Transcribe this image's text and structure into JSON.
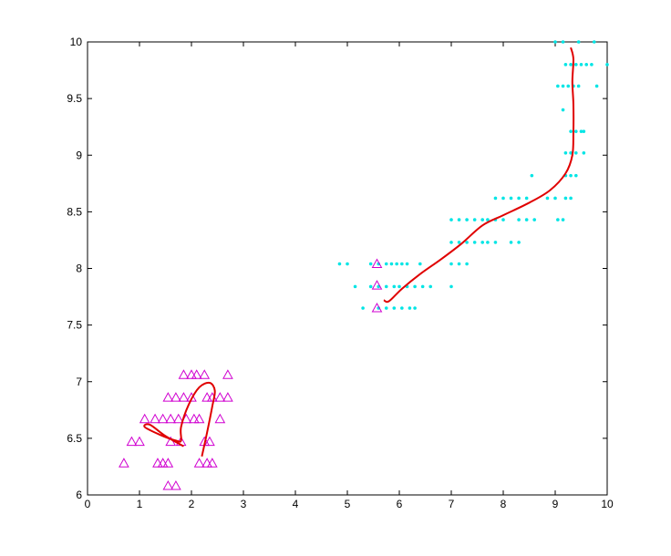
{
  "chart_data": {
    "type": "scatter",
    "title": "",
    "xlabel": "",
    "ylabel": "",
    "xlim": [
      0,
      10
    ],
    "ylim": [
      6,
      10
    ],
    "xticks": [
      "0",
      "1",
      "2",
      "3",
      "4",
      "5",
      "6",
      "7",
      "8",
      "9",
      "10"
    ],
    "yticks": [
      "6",
      "6.5",
      "7",
      "7.5",
      "8",
      "8.5",
      "9",
      "9.5",
      "10"
    ],
    "grid": false,
    "legend": "none",
    "colors": {
      "cyan": "#00e5e5",
      "magenta": "#d000d0",
      "red": "#e00000",
      "axis": "#000000"
    },
    "series": [
      {
        "marker": "dot",
        "color": "#00e5e5",
        "points": [
          [
            4.85,
            8.04
          ],
          [
            5.0,
            8.04
          ],
          [
            5.45,
            8.04
          ],
          [
            5.6,
            8.04
          ],
          [
            5.75,
            8.04
          ],
          [
            5.85,
            8.04
          ],
          [
            5.95,
            8.04
          ],
          [
            6.05,
            8.04
          ],
          [
            6.15,
            8.04
          ],
          [
            6.4,
            8.04
          ],
          [
            7.0,
            8.04
          ],
          [
            7.15,
            8.04
          ],
          [
            7.3,
            8.04
          ],
          [
            5.15,
            7.84
          ],
          [
            5.45,
            7.84
          ],
          [
            5.6,
            7.84
          ],
          [
            5.75,
            7.84
          ],
          [
            5.9,
            7.84
          ],
          [
            6.0,
            7.84
          ],
          [
            6.15,
            7.84
          ],
          [
            6.3,
            7.84
          ],
          [
            6.45,
            7.84
          ],
          [
            6.6,
            7.84
          ],
          [
            7.0,
            7.84
          ],
          [
            5.3,
            7.65
          ],
          [
            5.6,
            7.65
          ],
          [
            5.75,
            7.65
          ],
          [
            5.9,
            7.65
          ],
          [
            6.05,
            7.65
          ],
          [
            6.2,
            7.65
          ],
          [
            6.3,
            7.65
          ],
          [
            7.0,
            8.23
          ],
          [
            7.15,
            8.23
          ],
          [
            7.3,
            8.23
          ],
          [
            7.45,
            8.23
          ],
          [
            7.6,
            8.23
          ],
          [
            7.7,
            8.23
          ],
          [
            7.85,
            8.23
          ],
          [
            8.15,
            8.23
          ],
          [
            8.3,
            8.23
          ],
          [
            7.0,
            8.43
          ],
          [
            7.15,
            8.43
          ],
          [
            7.3,
            8.43
          ],
          [
            7.45,
            8.43
          ],
          [
            7.6,
            8.43
          ],
          [
            7.7,
            8.43
          ],
          [
            7.85,
            8.43
          ],
          [
            8.0,
            8.43
          ],
          [
            8.3,
            8.43
          ],
          [
            8.45,
            8.43
          ],
          [
            8.6,
            8.43
          ],
          [
            7.85,
            8.62
          ],
          [
            8.0,
            8.62
          ],
          [
            8.15,
            8.62
          ],
          [
            8.3,
            8.62
          ],
          [
            8.45,
            8.62
          ],
          [
            8.85,
            8.62
          ],
          [
            9.0,
            8.62
          ],
          [
            9.2,
            8.62
          ],
          [
            9.3,
            8.62
          ],
          [
            9.05,
            8.43
          ],
          [
            9.15,
            8.43
          ],
          [
            8.55,
            8.82
          ],
          [
            9.2,
            8.82
          ],
          [
            9.3,
            8.82
          ],
          [
            9.4,
            8.82
          ],
          [
            9.2,
            9.02
          ],
          [
            9.3,
            9.02
          ],
          [
            9.4,
            9.02
          ],
          [
            9.55,
            9.02
          ],
          [
            9.3,
            9.21
          ],
          [
            9.4,
            9.21
          ],
          [
            9.5,
            9.21
          ],
          [
            9.55,
            9.21
          ],
          [
            9.15,
            9.4
          ],
          [
            9.05,
            9.61
          ],
          [
            9.15,
            9.61
          ],
          [
            9.25,
            9.61
          ],
          [
            9.35,
            9.61
          ],
          [
            9.45,
            9.61
          ],
          [
            9.8,
            9.61
          ],
          [
            9.2,
            9.8
          ],
          [
            9.3,
            9.8
          ],
          [
            9.4,
            9.8
          ],
          [
            9.5,
            9.8
          ],
          [
            9.6,
            9.8
          ],
          [
            9.7,
            9.8
          ],
          [
            10.0,
            9.8
          ],
          [
            9.0,
            10.0
          ],
          [
            9.15,
            10.0
          ],
          [
            9.45,
            10.0
          ],
          [
            9.75,
            10.0
          ]
        ]
      },
      {
        "marker": "triangle",
        "color": "#d000d0",
        "points": [
          [
            0.7,
            6.28
          ],
          [
            1.0,
            6.47
          ],
          [
            1.35,
            6.28
          ],
          [
            1.45,
            6.28
          ],
          [
            1.55,
            6.28
          ],
          [
            1.55,
            6.08
          ],
          [
            1.7,
            6.08
          ],
          [
            2.15,
            6.28
          ],
          [
            2.3,
            6.28
          ],
          [
            2.4,
            6.28
          ],
          [
            2.35,
            6.47
          ],
          [
            0.85,
            6.47
          ],
          [
            1.6,
            6.47
          ],
          [
            1.8,
            6.47
          ],
          [
            2.25,
            6.47
          ],
          [
            1.1,
            6.67
          ],
          [
            1.3,
            6.67
          ],
          [
            1.45,
            6.67
          ],
          [
            1.6,
            6.67
          ],
          [
            1.75,
            6.67
          ],
          [
            1.9,
            6.67
          ],
          [
            2.05,
            6.67
          ],
          [
            2.15,
            6.67
          ],
          [
            2.55,
            6.67
          ],
          [
            1.55,
            6.86
          ],
          [
            1.7,
            6.86
          ],
          [
            1.85,
            6.86
          ],
          [
            2.0,
            6.86
          ],
          [
            2.3,
            6.86
          ],
          [
            2.4,
            6.86
          ],
          [
            2.55,
            6.86
          ],
          [
            2.7,
            6.86
          ],
          [
            1.85,
            7.06
          ],
          [
            2.0,
            7.06
          ],
          [
            2.1,
            7.06
          ],
          [
            2.25,
            7.06
          ],
          [
            2.7,
            7.06
          ],
          [
            5.57,
            8.04
          ],
          [
            5.57,
            7.85
          ],
          [
            5.57,
            7.65
          ]
        ]
      }
    ],
    "curves": [
      {
        "color": "#e00000",
        "points": [
          [
            2.2,
            6.34
          ],
          [
            2.3,
            6.55
          ],
          [
            2.4,
            6.78
          ],
          [
            2.45,
            6.92
          ],
          [
            2.35,
            6.99
          ],
          [
            2.15,
            6.95
          ],
          [
            1.95,
            6.8
          ],
          [
            1.8,
            6.6
          ],
          [
            1.8,
            6.48
          ],
          [
            1.7,
            6.48
          ],
          [
            1.4,
            6.53
          ],
          [
            1.1,
            6.6
          ],
          [
            1.2,
            6.62
          ],
          [
            1.5,
            6.52
          ],
          [
            1.85,
            6.43
          ]
        ]
      },
      {
        "color": "#e00000",
        "points": [
          [
            5.7,
            7.72
          ],
          [
            5.8,
            7.71
          ],
          [
            6.05,
            7.82
          ],
          [
            6.4,
            7.95
          ],
          [
            6.8,
            8.08
          ],
          [
            7.2,
            8.22
          ],
          [
            7.6,
            8.38
          ],
          [
            8.0,
            8.47
          ],
          [
            8.5,
            8.58
          ],
          [
            8.9,
            8.69
          ],
          [
            9.2,
            8.84
          ],
          [
            9.33,
            9.0
          ],
          [
            9.35,
            9.2
          ],
          [
            9.35,
            9.45
          ],
          [
            9.33,
            9.65
          ],
          [
            9.35,
            9.85
          ],
          [
            9.3,
            9.95
          ]
        ]
      }
    ]
  }
}
